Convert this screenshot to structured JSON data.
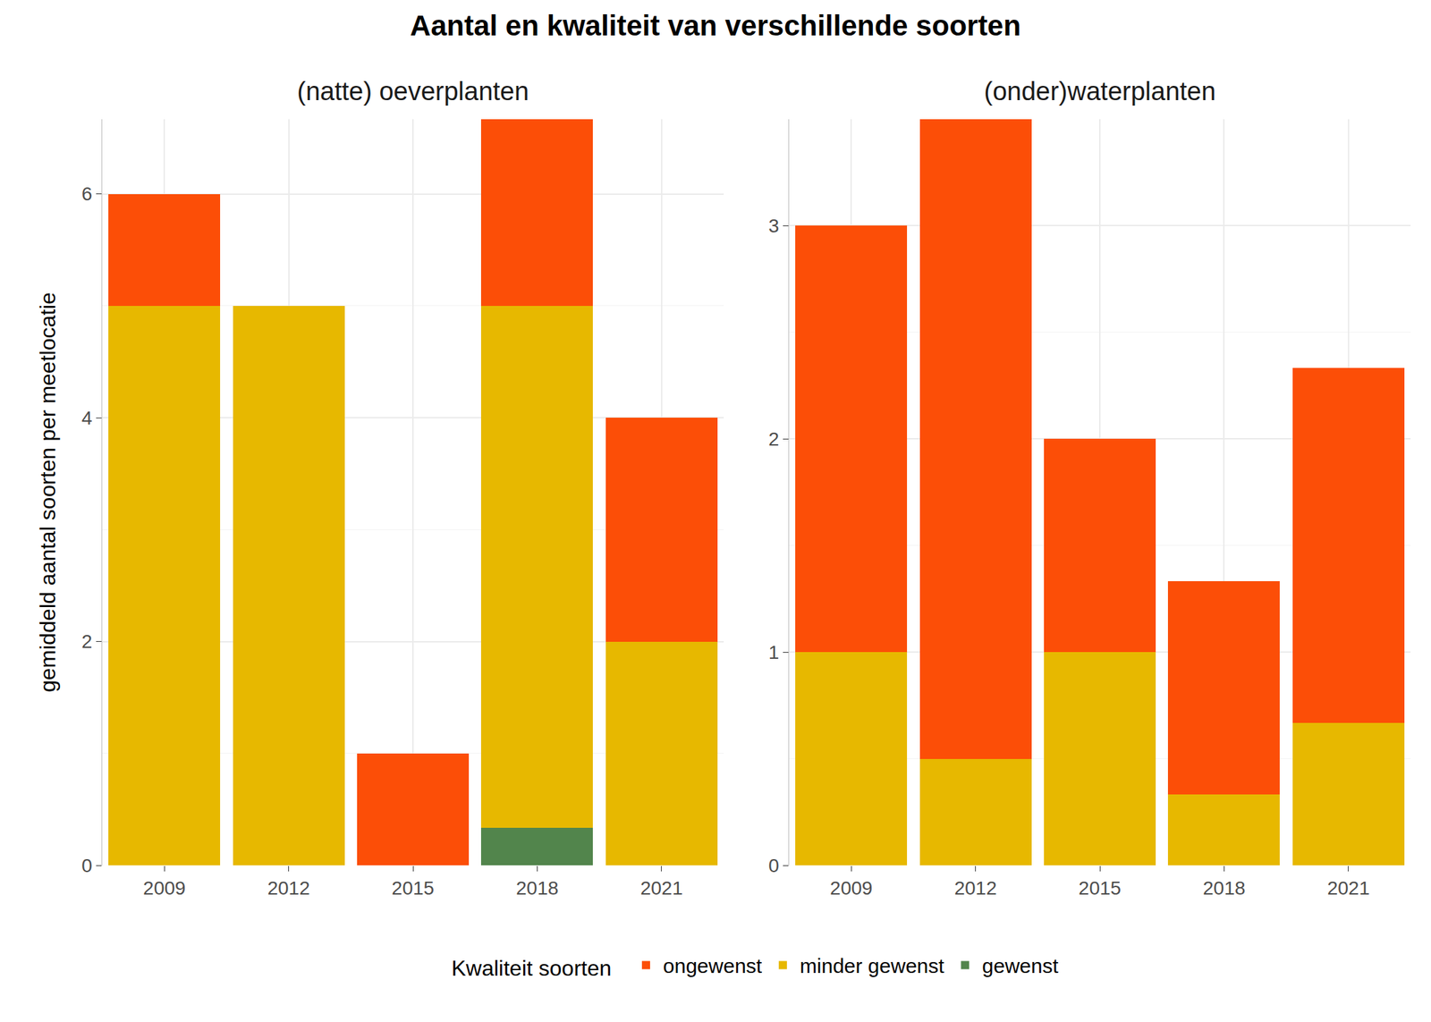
{
  "title": "Aantal en kwaliteit van verschillende soorten",
  "legend_title": "Kwaliteit soorten",
  "chart_data": [
    {
      "type": "bar",
      "stacked": true,
      "grid": true,
      "legend": "bottom",
      "title": "(natte) oeverplanten",
      "y_label": "gemiddeld aantal soorten per meetlocatie",
      "categories": [
        "2009",
        "2012",
        "2015",
        "2018",
        "2021"
      ],
      "ylim": [
        0,
        6.667
      ],
      "yticks": [
        0,
        2,
        4,
        6
      ],
      "series": [
        {
          "name": "ongewenst",
          "color": "#FC4E07",
          "values": [
            1,
            0,
            1,
            1.667,
            2
          ]
        },
        {
          "name": "minder gewenst",
          "color": "#E7B800",
          "values": [
            5,
            5,
            0,
            4.667,
            2
          ]
        },
        {
          "name": "gewenst",
          "color": "#52854C",
          "values": [
            0,
            0,
            0,
            0.333,
            0
          ]
        }
      ]
    },
    {
      "type": "bar",
      "stacked": true,
      "grid": true,
      "legend": "bottom",
      "title": "(onder)waterplanten",
      "categories": [
        "2009",
        "2012",
        "2015",
        "2018",
        "2021"
      ],
      "ylim": [
        0,
        3.5
      ],
      "yticks": [
        0,
        1,
        2,
        3
      ],
      "series": [
        {
          "name": "ongewenst",
          "color": "#FC4E07",
          "values": [
            2,
            3,
            1,
            1,
            1.667
          ]
        },
        {
          "name": "minder gewenst",
          "color": "#E7B800",
          "values": [
            1,
            0.5,
            1,
            0.333,
            0.667
          ]
        },
        {
          "name": "gewenst",
          "color": "#52854C",
          "values": [
            0,
            0,
            0,
            0,
            0
          ]
        }
      ]
    }
  ]
}
